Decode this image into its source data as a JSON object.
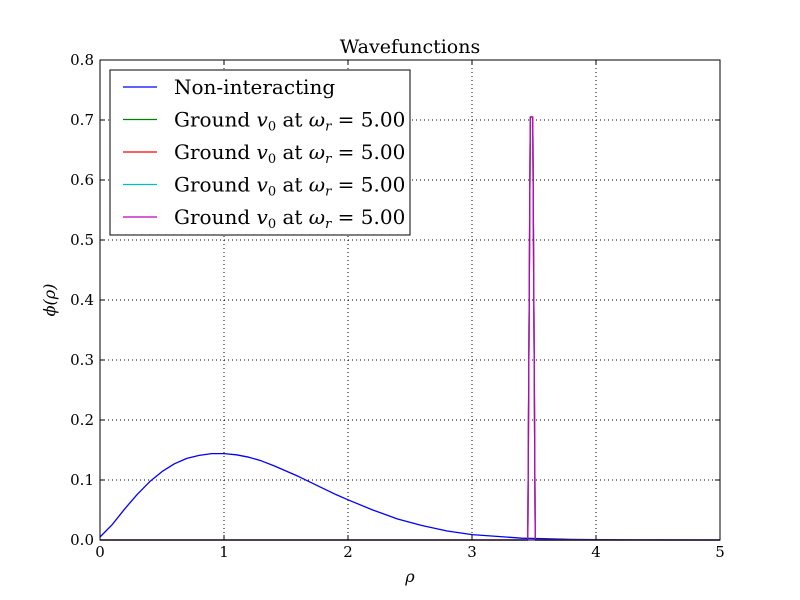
{
  "chart_data": {
    "type": "line",
    "title": "Wavefunctions",
    "xlabel": "ρ",
    "ylabel": "ϕ(ρ)",
    "xlim": [
      0,
      5
    ],
    "ylim": [
      0,
      0.8
    ],
    "grid": true,
    "legend_position": "top-left",
    "xticks": [
      0,
      1,
      2,
      3,
      4,
      5
    ],
    "xtick_labels": [
      "0",
      "1",
      "2",
      "3",
      "4",
      "5"
    ],
    "yticks": [
      0.0,
      0.1,
      0.2,
      0.3,
      0.4,
      0.5,
      0.6,
      0.7,
      0.8
    ],
    "ytick_labels": [
      "0.0",
      "0.1",
      "0.2",
      "0.3",
      "0.4",
      "0.5",
      "0.6",
      "0.7",
      "0.8"
    ],
    "series": [
      {
        "name": "Non-interacting",
        "color": "#0000ff",
        "x": [
          0,
          0.1,
          0.2,
          0.3,
          0.4,
          0.5,
          0.6,
          0.7,
          0.8,
          0.9,
          1.0,
          1.1,
          1.2,
          1.3,
          1.4,
          1.5,
          1.6,
          1.7,
          1.8,
          1.9,
          2.0,
          2.2,
          2.4,
          2.6,
          2.8,
          3.0,
          3.2,
          3.4,
          3.6,
          3.8,
          4.0,
          4.5,
          5.0
        ],
        "y": [
          0.005,
          0.026,
          0.052,
          0.076,
          0.097,
          0.114,
          0.127,
          0.136,
          0.141,
          0.144,
          0.144,
          0.142,
          0.138,
          0.132,
          0.124,
          0.115,
          0.106,
          0.096,
          0.086,
          0.076,
          0.067,
          0.05,
          0.035,
          0.024,
          0.015,
          0.009,
          0.006,
          0.003,
          0.002,
          0.001,
          0.0005,
          0.0001,
          0.0
        ]
      },
      {
        "name": "Ground v0 at ωr = 5.00",
        "label_parts": [
          "Ground ",
          "v",
          "0",
          " at ",
          "ω",
          "r",
          " = 5.00"
        ],
        "color": "#008000",
        "x": [
          0,
          3.45,
          3.47,
          3.49,
          3.51,
          5.0
        ],
        "y": [
          0,
          0,
          0.705,
          0.705,
          0,
          0
        ]
      },
      {
        "name": "Ground v0 at ωr = 5.00",
        "label_parts": [
          "Ground ",
          "v",
          "0",
          " at ",
          "ω",
          "r",
          " = 5.00"
        ],
        "color": "#ff0000",
        "x": [
          0,
          3.45,
          3.47,
          3.49,
          3.51,
          5.0
        ],
        "y": [
          0,
          0,
          0.705,
          0.705,
          0,
          0
        ]
      },
      {
        "name": "Ground v0 at ωr = 5.00",
        "label_parts": [
          "Ground ",
          "v",
          "0",
          " at ",
          "ω",
          "r",
          " = 5.00"
        ],
        "color": "#00bfbf",
        "x": [
          0,
          3.45,
          3.47,
          3.49,
          3.51,
          5.0
        ],
        "y": [
          0,
          0,
          0.705,
          0.705,
          0,
          0
        ]
      },
      {
        "name": "Ground v0 at ωr = 5.00",
        "label_parts": [
          "Ground ",
          "v",
          "0",
          " at ",
          "ω",
          "r",
          " = 5.00"
        ],
        "color": "#bf00bf",
        "x": [
          0,
          3.45,
          3.47,
          3.49,
          3.51,
          5.0
        ],
        "y": [
          0,
          0,
          0.705,
          0.705,
          0,
          0
        ]
      }
    ]
  }
}
